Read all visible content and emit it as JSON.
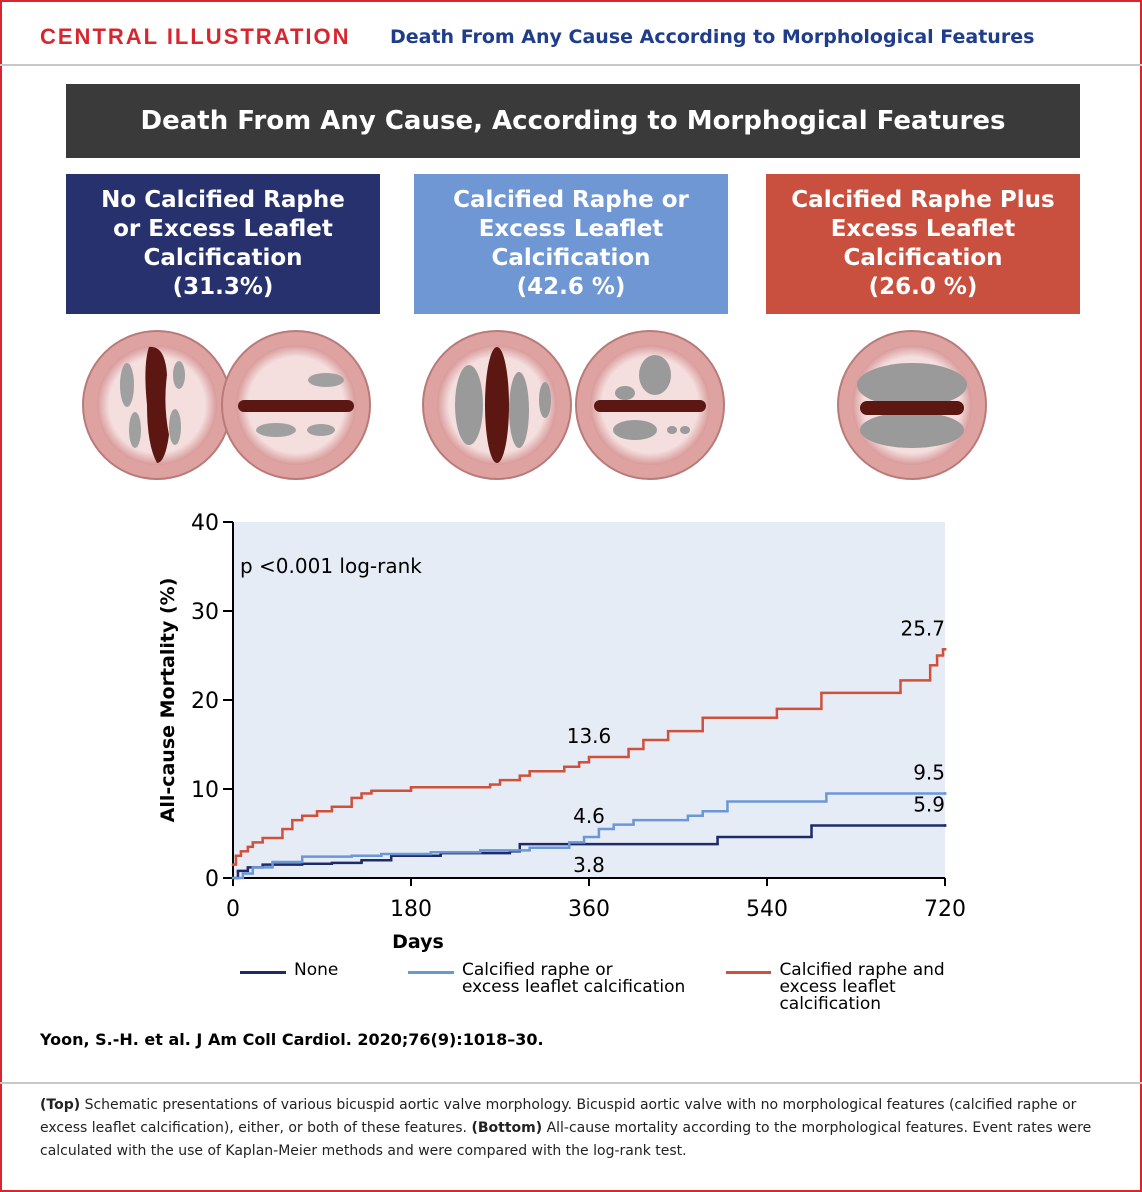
{
  "header": {
    "kicker": "CENTRAL ILLUSTRATION",
    "title": "Death From Any Cause According to Morphological Features"
  },
  "banner": "Death From Any Cause, According to Morphogical Features",
  "groups": [
    {
      "label": "No Calcified Raphe or Excess Leaflet Calcification",
      "percent": "(31.3%)"
    },
    {
      "label": "Calcified Raphe or Excess Leaflet Calcification",
      "percent": "(42.6 %)"
    },
    {
      "label": "Calcified Raphe Plus Excess Leaflet Calcification",
      "percent": "(26.0 %)"
    }
  ],
  "chart_data": {
    "type": "step",
    "xlabel": "Days",
    "ylabel": "All-cause Mortality (%)",
    "annotation": "p <0.001 log-rank",
    "xlim": [
      0,
      720
    ],
    "xticks": [
      0,
      180,
      360,
      540,
      720
    ],
    "ylim": [
      0,
      40
    ],
    "yticks": [
      0,
      10,
      20,
      30,
      40
    ],
    "series": [
      {
        "name": "None",
        "color": "#1f2a6b",
        "x": [
          0,
          5,
          15,
          30,
          70,
          100,
          130,
          160,
          210,
          280,
          290,
          490,
          585,
          720
        ],
        "values": [
          0,
          0.8,
          1.2,
          1.5,
          1.6,
          1.7,
          2.0,
          2.5,
          2.8,
          3.0,
          3.8,
          4.6,
          5.9,
          5.9
        ]
      },
      {
        "name": "Calcified raphe or\nexcess leaflet calcification",
        "color": "#6b97d6",
        "x": [
          0,
          10,
          20,
          40,
          70,
          120,
          150,
          200,
          250,
          300,
          340,
          355,
          370,
          385,
          405,
          460,
          475,
          500,
          600,
          720
        ],
        "values": [
          0,
          0.5,
          1.2,
          1.8,
          2.4,
          2.5,
          2.7,
          2.9,
          3.1,
          3.4,
          4.0,
          4.6,
          5.5,
          6.0,
          6.5,
          7.0,
          7.5,
          8.6,
          9.5,
          9.5
        ]
      },
      {
        "name": "Calcified raphe and\nexcess leaflet calcification",
        "color": "#d0503a",
        "x": [
          0,
          3,
          8,
          15,
          20,
          30,
          50,
          60,
          70,
          85,
          100,
          120,
          130,
          140,
          180,
          260,
          270,
          290,
          300,
          335,
          350,
          360,
          400,
          415,
          440,
          475,
          550,
          595,
          675,
          705,
          712,
          718,
          720
        ],
        "values": [
          1.5,
          2.5,
          3.0,
          3.5,
          4.0,
          4.5,
          5.5,
          6.5,
          7.0,
          7.5,
          8.0,
          9.0,
          9.5,
          9.8,
          10.2,
          10.5,
          11.0,
          11.5,
          12.0,
          12.5,
          13.0,
          13.6,
          14.5,
          15.5,
          16.5,
          18.0,
          19.0,
          20.8,
          22.2,
          23.9,
          25.0,
          25.7,
          25.7
        ]
      }
    ],
    "point_labels": [
      {
        "series": 2,
        "x": 720,
        "value": 25.7,
        "position": "above"
      },
      {
        "series": 2,
        "x": 360,
        "value": 13.6,
        "position": "above"
      },
      {
        "series": 1,
        "x": 720,
        "value": 9.5,
        "position": "above"
      },
      {
        "series": 1,
        "x": 360,
        "value": 4.6,
        "position": "above"
      },
      {
        "series": 0,
        "x": 720,
        "value": 5.9,
        "position": "above"
      },
      {
        "series": 0,
        "x": 360,
        "value": 3.8,
        "position": "below"
      }
    ]
  },
  "citation": "Yoon, S.-H. et al. J Am Coll Cardiol. 2020;76(9):1018–30.",
  "caption": [
    {
      "text": "(Top)",
      "bold": true
    },
    {
      "text": " Schematic presentations of various bicuspid aortic valve morphology. Bicuspid aortic valve with no morphological features (calcified raphe or excess leaflet calcification), either, or both of these features. ",
      "bold": false
    },
    {
      "text": "(Bottom)",
      "bold": true
    },
    {
      "text": " All-cause mortality according to the morphological features. Event rates were calculated with the use of Kaplan-Meier methods and were compared with the log-rank test.",
      "bold": false
    }
  ]
}
